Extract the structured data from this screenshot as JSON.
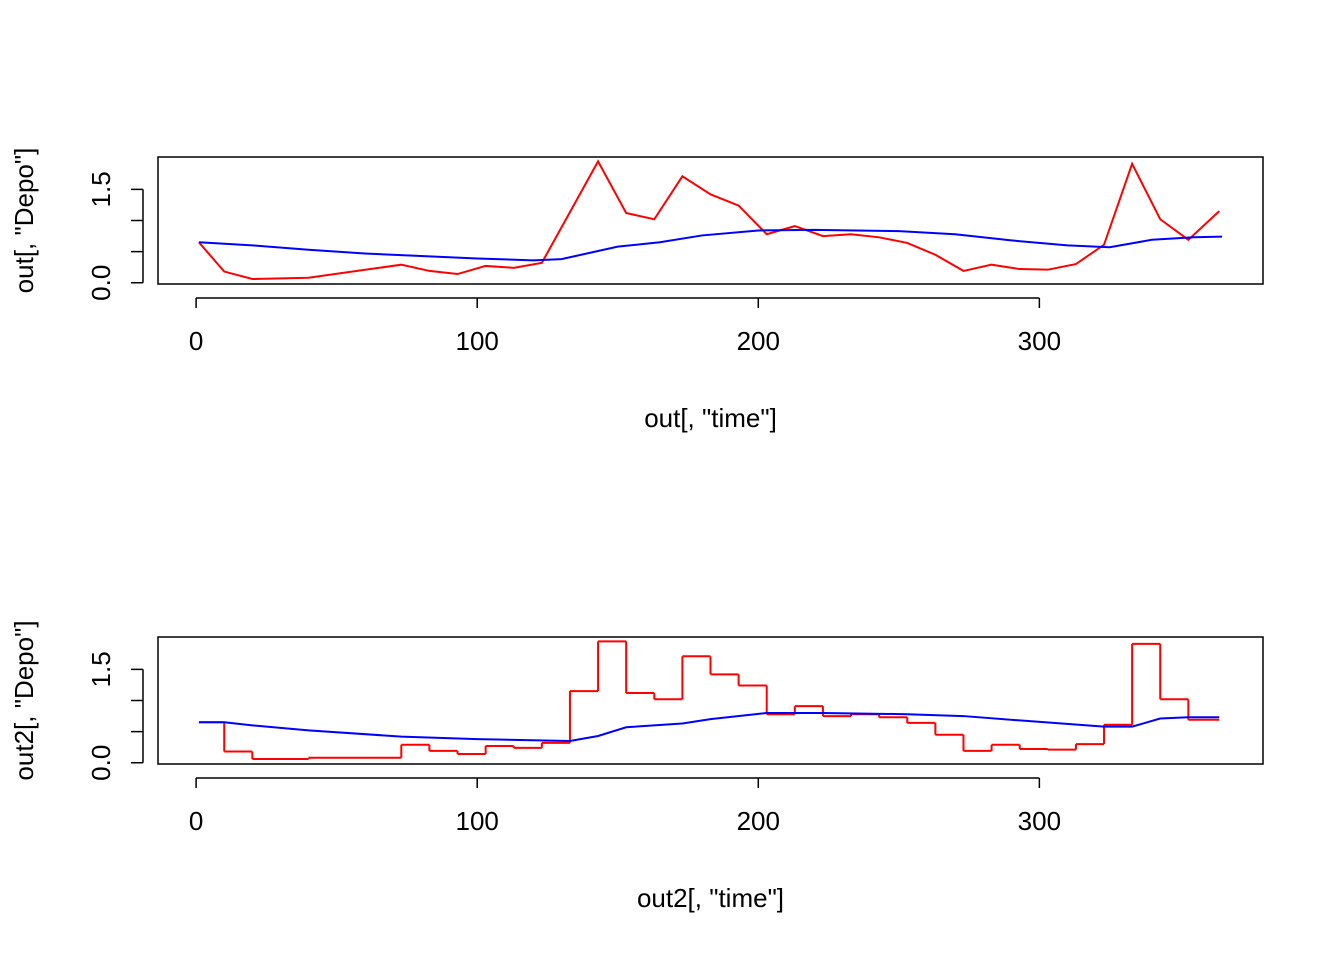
{
  "chart_data": [
    {
      "type": "line",
      "xlabel": "out[, \"time\"]",
      "ylabel": "out[, \"Depo\"]",
      "xlim": [
        -13.56,
        379.56
      ],
      "xticks": [
        0,
        100,
        200,
        300
      ],
      "ylim": [
        -0.02,
        2.02
      ],
      "yticks": [
        {
          "value": 0,
          "label": "0.0"
        },
        {
          "value": 0.5,
          "label": null
        },
        {
          "value": 1,
          "label": null
        },
        {
          "value": 1.5,
          "label": "1.5"
        }
      ],
      "series": [
        {
          "color": "#ff0000",
          "x": [
            1,
            10,
            20,
            40,
            73,
            83,
            93,
            103,
            113,
            123,
            143,
            153,
            163,
            173,
            183,
            193,
            203,
            213,
            223,
            233,
            243,
            253,
            263,
            273,
            283,
            293,
            303,
            313,
            323,
            333,
            343,
            353,
            364
          ],
          "values": [
            0.65,
            0.18,
            0.06,
            0.08,
            0.29,
            0.19,
            0.14,
            0.27,
            0.24,
            0.32,
            1.95,
            1.12,
            1.02,
            1.71,
            1.42,
            1.24,
            0.78,
            0.91,
            0.75,
            0.78,
            0.73,
            0.64,
            0.45,
            0.19,
            0.29,
            0.22,
            0.21,
            0.3,
            0.61,
            1.91,
            1.02,
            0.69,
            1.15
          ]
        },
        {
          "color": "#0000ff",
          "x": [
            1,
            20,
            40,
            60,
            80,
            100,
            120,
            130,
            140,
            150,
            165,
            180,
            200,
            220,
            250,
            270,
            290,
            310,
            325,
            340,
            355,
            365
          ],
          "values": [
            0.65,
            0.6,
            0.53,
            0.47,
            0.43,
            0.39,
            0.36,
            0.38,
            0.48,
            0.58,
            0.65,
            0.76,
            0.84,
            0.85,
            0.83,
            0.78,
            0.68,
            0.6,
            0.57,
            0.69,
            0.73,
            0.74
          ]
        }
      ]
    },
    {
      "type": "line",
      "xlabel": "out2[, \"time\"]",
      "ylabel": "out2[, \"Depo\"]",
      "xlim": [
        -13.56,
        379.56
      ],
      "xticks": [
        0,
        100,
        200,
        300
      ],
      "ylim": [
        -0.02,
        2.02
      ],
      "yticks": [
        {
          "value": 0,
          "label": "0.0"
        },
        {
          "value": 0.5,
          "label": null
        },
        {
          "value": 1,
          "label": null
        },
        {
          "value": 1.5,
          "label": "1.5"
        }
      ],
      "series": [
        {
          "color": "#ff0000",
          "step": "post",
          "x": [
            1,
            10,
            20,
            40,
            73,
            83,
            93,
            103,
            113,
            123,
            133,
            143,
            153,
            163,
            173,
            183,
            193,
            203,
            213,
            223,
            233,
            243,
            253,
            263,
            273,
            283,
            293,
            303,
            313,
            323,
            333,
            343,
            353,
            364
          ],
          "values": [
            0.65,
            0.18,
            0.06,
            0.08,
            0.29,
            0.19,
            0.14,
            0.27,
            0.24,
            0.32,
            1.15,
            1.95,
            1.12,
            1.02,
            1.71,
            1.42,
            1.24,
            0.78,
            0.91,
            0.75,
            0.78,
            0.73,
            0.64,
            0.45,
            0.19,
            0.29,
            0.22,
            0.21,
            0.3,
            0.61,
            1.91,
            1.02,
            0.69,
            0.69
          ]
        },
        {
          "color": "#0000ff",
          "x": [
            1,
            10,
            20,
            40,
            73,
            100,
            133,
            143,
            153,
            173,
            183,
            203,
            223,
            253,
            273,
            293,
            323,
            333,
            343,
            353,
            364
          ],
          "values": [
            0.65,
            0.65,
            0.6,
            0.52,
            0.42,
            0.38,
            0.35,
            0.43,
            0.57,
            0.63,
            0.7,
            0.8,
            0.8,
            0.78,
            0.75,
            0.68,
            0.58,
            0.58,
            0.71,
            0.73,
            0.73
          ]
        }
      ]
    }
  ]
}
